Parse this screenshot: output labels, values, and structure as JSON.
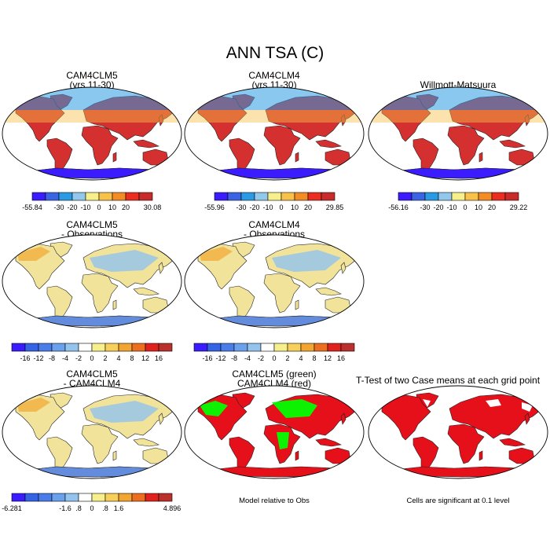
{
  "title": "ANN TSA (C)",
  "colors": {
    "abs": [
      "#3a1cff",
      "#3b64e4",
      "#2a9ae4",
      "#91c8ec",
      "#f6ef8b",
      "#f8c24a",
      "#f38c25",
      "#ea2d1f",
      "#c92a2a"
    ],
    "diff": [
      "#3a1cff",
      "#3563e6",
      "#4a7de9",
      "#69a1ec",
      "#94c3ee",
      "#ffffff",
      "#f6ef8b",
      "#f7cf5b",
      "#f2a631",
      "#ec6f20",
      "#e1211d",
      "#b9302c"
    ],
    "land_abs": "#d3302f",
    "land_diff": "#f1e39a",
    "green": "#00ff00",
    "sig": "#e5101a",
    "ocean": "#ffffff"
  },
  "panels": [
    {
      "id": "p1",
      "title1": "CAM4CLM5",
      "title2": "(yrs 11-30)",
      "kind": "abs",
      "colorbar": {
        "palette": "abs",
        "min_label": "-55.84",
        "max_label": "30.08",
        "tick_labels": [
          "-30",
          "-20",
          "-10",
          "0",
          "10",
          "20"
        ]
      }
    },
    {
      "id": "p2",
      "title1": "CAM4CLM4",
      "title2": "(yrs 11-30)",
      "kind": "abs",
      "colorbar": {
        "palette": "abs",
        "min_label": "-55.96",
        "max_label": "29.85",
        "tick_labels": [
          "-30",
          "-20",
          "-10",
          "0",
          "10",
          "20"
        ]
      }
    },
    {
      "id": "p3",
      "title1": "Willmott-Matsuura",
      "title2": "",
      "kind": "abs",
      "colorbar": {
        "palette": "abs",
        "min_label": "-56.16",
        "max_label": "29.22",
        "tick_labels": [
          "-30",
          "-20",
          "-10",
          "0",
          "10",
          "20"
        ]
      }
    },
    {
      "id": "p4",
      "title1": "CAM4CLM5",
      "title2": "- Observations",
      "kind": "diff",
      "colorbar": {
        "palette": "diff",
        "min_label": "",
        "max_label": "",
        "tick_labels": [
          "-16",
          "-12",
          "-8",
          "-4",
          "-2",
          "0",
          "2",
          "4",
          "8",
          "12",
          "16"
        ]
      }
    },
    {
      "id": "p5",
      "title1": "CAM4CLM4",
      "title2": "- Observations",
      "kind": "diff",
      "colorbar": {
        "palette": "diff",
        "min_label": "",
        "max_label": "",
        "tick_labels": [
          "-16",
          "-12",
          "-8",
          "-4",
          "-2",
          "0",
          "2",
          "4",
          "8",
          "12",
          "16"
        ]
      }
    },
    {
      "id": "p7",
      "title1": "CAM4CLM5",
      "title2": "- CAM4CLM4",
      "kind": "diff",
      "colorbar": {
        "palette": "diff",
        "min_label": "-6.281",
        "max_label": "4.896",
        "tick_labels": [
          "-1.6",
          ".8",
          "0",
          ".8",
          "1.6"
        ]
      }
    },
    {
      "id": "p8",
      "title1": "CAM4CLM5 (green)",
      "title2": "CAM4CLM4 (red)",
      "kind": "greenred",
      "note": "Model relative to Obs"
    },
    {
      "id": "p9",
      "title1": "T-Test of two Case means at each grid point",
      "title2": "",
      "kind": "sig",
      "note": "Cells are significant at 0.1 level"
    }
  ]
}
